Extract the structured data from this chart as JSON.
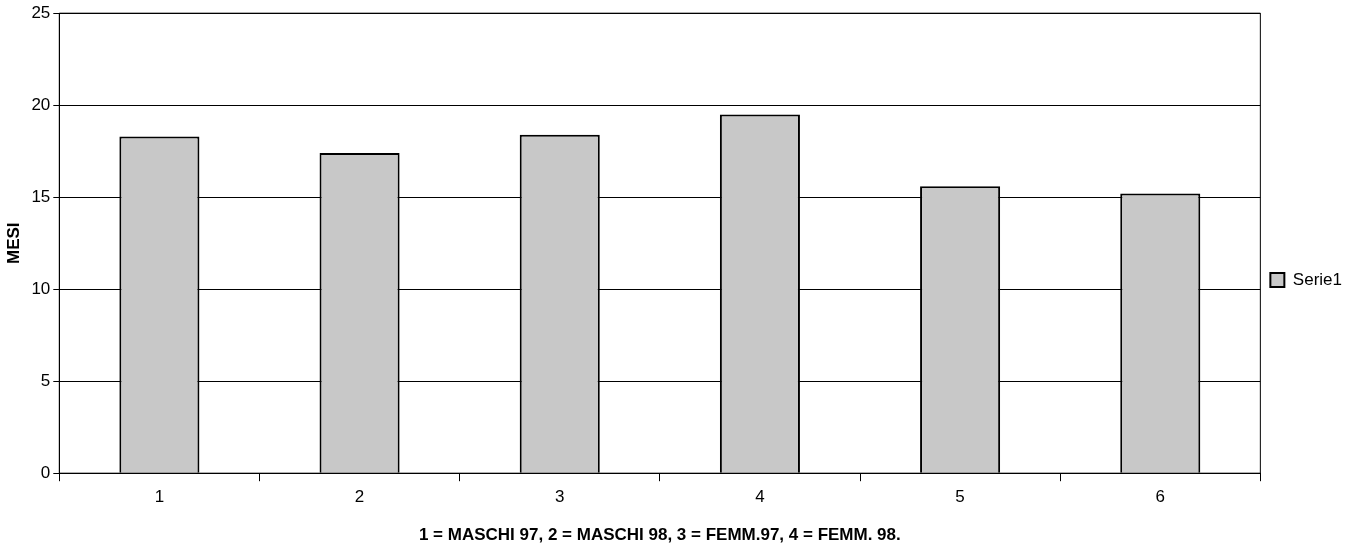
{
  "chart_data": {
    "type": "bar",
    "xlabel": "1 = MASCHI 97, 2 = MASCHI 98, 3 = FEMM.97, 4 = FEMM. 98.",
    "ylabel": "MESI",
    "categories": [
      "1",
      "2",
      "3",
      "4",
      "5",
      "6"
    ],
    "series": [
      {
        "name": "Serie1",
        "color": "#c8c8c8",
        "values": [
          18.3,
          17.4,
          18.4,
          19.5,
          15.6,
          15.2
        ]
      }
    ],
    "ylim": [
      0,
      25
    ],
    "yticks": [
      0,
      5,
      10,
      15,
      20,
      25
    ],
    "grid": "y",
    "legend": "right"
  }
}
